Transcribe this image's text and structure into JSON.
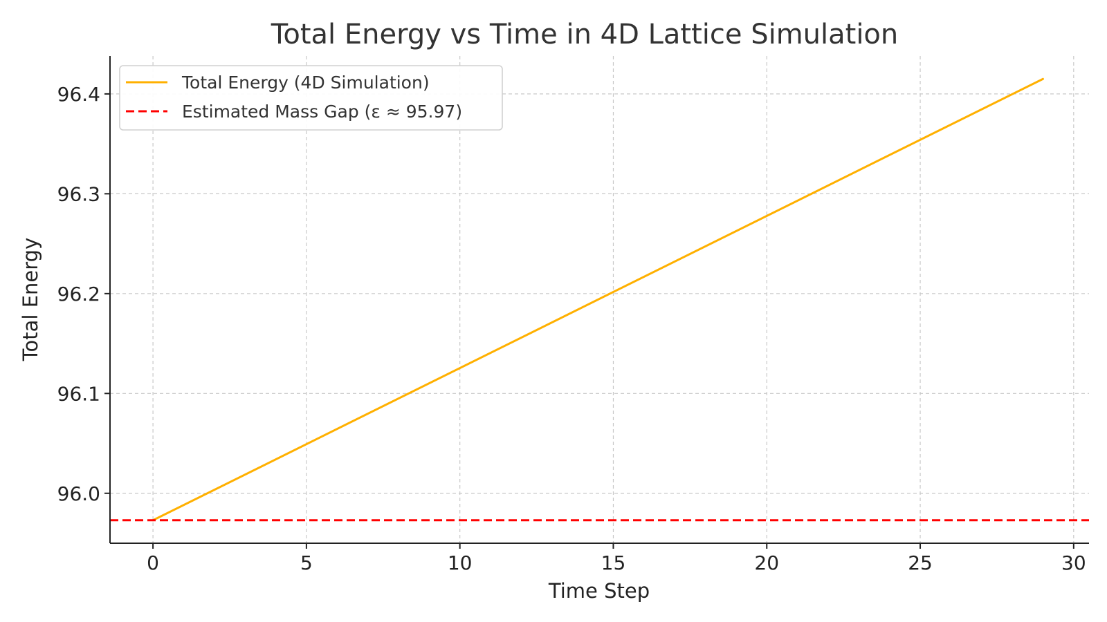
{
  "chart_data": {
    "type": "line",
    "title": "Total Energy vs Time in 4D Lattice Simulation",
    "xlabel": "Time Step",
    "ylabel": "Total Energy",
    "xlim": [
      -1.4,
      30.5
    ],
    "ylim": [
      95.95,
      96.438
    ],
    "xticks": [
      0,
      5,
      10,
      15,
      20,
      25,
      30
    ],
    "yticks": [
      96.0,
      96.1,
      96.2,
      96.3,
      96.4
    ],
    "xtick_labels": [
      "0",
      "5",
      "10",
      "15",
      "20",
      "25",
      "30"
    ],
    "ytick_labels": [
      "96.0",
      "96.1",
      "96.2",
      "96.3",
      "96.4"
    ],
    "grid": true,
    "legend_position": "top-left",
    "series": [
      {
        "name": "Total Energy (4D Simulation)",
        "color": "#FFB000",
        "style": "solid",
        "x": [
          0,
          29
        ],
        "y": [
          95.973,
          96.415
        ]
      },
      {
        "name": "Estimated Mass Gap (ε ≈ 95.97)",
        "color": "#FF0000",
        "style": "dashed",
        "type": "hline",
        "y_value": 95.973
      }
    ]
  }
}
